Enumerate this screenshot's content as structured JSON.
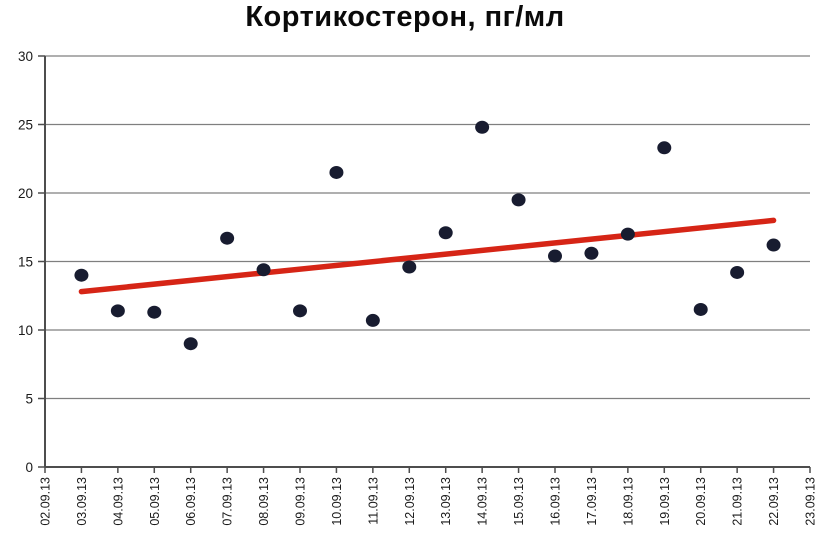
{
  "chart_data": {
    "type": "scatter",
    "title": "Кортикостерон, пг/мл",
    "xlabel": "",
    "ylabel": "",
    "ylim": [
      0,
      30
    ],
    "y_ticks": [
      0,
      5,
      10,
      15,
      20,
      25,
      30
    ],
    "grid": "horizontal",
    "legend_position": "none",
    "x_labels": [
      "02.09.13",
      "03.09.13",
      "04.09.13",
      "05.09.13",
      "06.09.13",
      "07.09.13",
      "08.09.13",
      "09.09.13",
      "10.09.13",
      "11.09.13",
      "12.09.13",
      "13.09.13",
      "14.09.13",
      "15.09.13",
      "16.09.13",
      "17.09.13",
      "18.09.13",
      "19.09.13",
      "20.09.13",
      "21.09.13",
      "22.09.13",
      "23.09.13"
    ],
    "points": [
      {
        "x": "03.09.13",
        "y": 14.0
      },
      {
        "x": "04.09.13",
        "y": 11.4
      },
      {
        "x": "05.09.13",
        "y": 11.3
      },
      {
        "x": "06.09.13",
        "y": 9.0
      },
      {
        "x": "07.09.13",
        "y": 16.7
      },
      {
        "x": "08.09.13",
        "y": 14.4
      },
      {
        "x": "09.09.13",
        "y": 11.4
      },
      {
        "x": "10.09.13",
        "y": 21.5
      },
      {
        "x": "11.09.13",
        "y": 10.7
      },
      {
        "x": "12.09.13",
        "y": 14.6
      },
      {
        "x": "13.09.13",
        "y": 17.1
      },
      {
        "x": "14.09.13",
        "y": 24.8
      },
      {
        "x": "15.09.13",
        "y": 19.5
      },
      {
        "x": "16.09.13",
        "y": 15.4
      },
      {
        "x": "17.09.13",
        "y": 15.6
      },
      {
        "x": "18.09.13",
        "y": 17.0
      },
      {
        "x": "19.09.13",
        "y": 23.3
      },
      {
        "x": "20.09.13",
        "y": 11.5
      },
      {
        "x": "21.09.13",
        "y": 14.2
      },
      {
        "x": "22.09.13",
        "y": 16.2
      }
    ],
    "trendline": {
      "start_x": "03.09.13",
      "start_y": 12.8,
      "end_x": "22.09.13",
      "end_y": 18.0
    },
    "colors": {
      "marker": "#181c30",
      "trend": "#d62516",
      "grid": "#7f7f7f",
      "axis": "#4d4d4d",
      "tick_text": "#1a1a1a",
      "title_text": "#0a0a0a",
      "background": "#ffffff"
    }
  }
}
